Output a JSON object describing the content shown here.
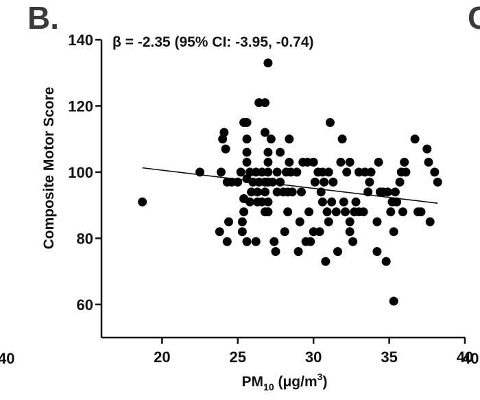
{
  "panel": {
    "label": "B.",
    "next_panel_label": "C",
    "prev_panel_tick_label": "40",
    "next_panel_tick_label": "40"
  },
  "annotation": "β = -2.35 (95% CI: -3.95, -0.74)",
  "chart_data": {
    "type": "scatter",
    "title": "",
    "xlabel_main": "PM",
    "xlabel_sub": "10",
    "xlabel_unit": " (μg/m",
    "xlabel_sup": "3",
    "xlabel_close": ")",
    "ylabel": "Composite Motor Score",
    "xlim": [
      16,
      40
    ],
    "ylim": [
      50,
      140
    ],
    "xticks": [
      20,
      25,
      30,
      35,
      40
    ],
    "yticks": [
      60,
      80,
      100,
      120,
      140
    ],
    "grid": false,
    "regression_line": {
      "x": [
        18.7,
        38.2
      ],
      "y": [
        101.3,
        90.6
      ]
    },
    "points": [
      [
        18.7,
        91
      ],
      [
        22.5,
        100
      ],
      [
        23.8,
        82
      ],
      [
        23.9,
        100
      ],
      [
        24.0,
        110
      ],
      [
        24.1,
        112
      ],
      [
        24.2,
        107
      ],
      [
        24.3,
        97
      ],
      [
        24.3,
        79
      ],
      [
        24.4,
        85
      ],
      [
        24.6,
        97
      ],
      [
        25.0,
        97
      ],
      [
        25.2,
        100
      ],
      [
        25.3,
        85
      ],
      [
        25.3,
        82
      ],
      [
        25.4,
        115
      ],
      [
        25.4,
        92
      ],
      [
        25.4,
        88
      ],
      [
        25.6,
        115
      ],
      [
        25.6,
        110
      ],
      [
        25.6,
        106
      ],
      [
        25.6,
        103
      ],
      [
        25.6,
        98
      ],
      [
        25.6,
        79
      ],
      [
        25.8,
        100
      ],
      [
        25.8,
        91
      ],
      [
        25.9,
        94
      ],
      [
        26.0,
        97
      ],
      [
        26.2,
        100
      ],
      [
        26.2,
        79
      ],
      [
        26.3,
        94
      ],
      [
        26.3,
        91
      ],
      [
        26.4,
        97
      ],
      [
        26.4,
        121
      ],
      [
        26.6,
        100
      ],
      [
        26.6,
        91
      ],
      [
        26.8,
        112
      ],
      [
        26.8,
        121
      ],
      [
        26.8,
        97
      ],
      [
        26.8,
        94
      ],
      [
        26.8,
        88
      ],
      [
        27.0,
        133
      ],
      [
        27.0,
        106
      ],
      [
        27.0,
        103
      ],
      [
        27.0,
        100
      ],
      [
        27.0,
        97
      ],
      [
        27.0,
        91
      ],
      [
        27.0,
        88
      ],
      [
        27.2,
        110
      ],
      [
        27.3,
        97
      ],
      [
        27.4,
        79
      ],
      [
        27.5,
        76
      ],
      [
        27.6,
        94
      ],
      [
        27.6,
        100
      ],
      [
        27.8,
        106
      ],
      [
        27.8,
        97
      ],
      [
        28.0,
        94
      ],
      [
        28.1,
        82
      ],
      [
        28.2,
        100
      ],
      [
        28.3,
        88
      ],
      [
        28.3,
        94
      ],
      [
        28.4,
        110
      ],
      [
        28.4,
        103
      ],
      [
        28.5,
        100
      ],
      [
        28.6,
        94
      ],
      [
        28.9,
        100
      ],
      [
        29.0,
        76
      ],
      [
        29.1,
        85
      ],
      [
        29.2,
        94
      ],
      [
        29.3,
        103
      ],
      [
        29.5,
        79
      ],
      [
        29.6,
        103
      ],
      [
        29.7,
        88
      ],
      [
        29.8,
        79
      ],
      [
        30.0,
        82
      ],
      [
        30.0,
        103
      ],
      [
        30.1,
        97
      ],
      [
        30.3,
        100
      ],
      [
        30.4,
        82
      ],
      [
        30.5,
        94
      ],
      [
        30.6,
        100
      ],
      [
        30.6,
        91
      ],
      [
        30.7,
        97
      ],
      [
        30.8,
        73
      ],
      [
        30.9,
        88
      ],
      [
        31.0,
        100
      ],
      [
        31.0,
        85
      ],
      [
        31.1,
        115
      ],
      [
        31.2,
        91
      ],
      [
        31.3,
        97
      ],
      [
        31.5,
        88
      ],
      [
        31.6,
        76
      ],
      [
        31.8,
        103
      ],
      [
        31.9,
        110
      ],
      [
        32.0,
        91
      ],
      [
        32.1,
        88
      ],
      [
        32.2,
        100
      ],
      [
        32.4,
        85
      ],
      [
        32.4,
        82
      ],
      [
        32.4,
        103
      ],
      [
        32.6,
        79
      ],
      [
        32.7,
        88
      ],
      [
        32.8,
        91
      ],
      [
        33.0,
        88
      ],
      [
        33.0,
        100
      ],
      [
        33.3,
        88
      ],
      [
        33.4,
        100
      ],
      [
        33.6,
        94
      ],
      [
        33.7,
        97
      ],
      [
        33.8,
        100
      ],
      [
        34.2,
        85
      ],
      [
        34.2,
        76
      ],
      [
        34.3,
        103
      ],
      [
        34.4,
        94
      ],
      [
        34.6,
        94
      ],
      [
        34.8,
        73
      ],
      [
        34.9,
        94
      ],
      [
        35.1,
        88
      ],
      [
        35.2,
        91
      ],
      [
        35.3,
        82
      ],
      [
        35.3,
        61
      ],
      [
        35.4,
        94
      ],
      [
        35.5,
        91
      ],
      [
        35.7,
        97
      ],
      [
        35.8,
        100
      ],
      [
        35.9,
        88
      ],
      [
        36.0,
        103
      ],
      [
        36.1,
        100
      ],
      [
        36.7,
        110
      ],
      [
        36.9,
        88
      ],
      [
        37.1,
        88
      ],
      [
        37.5,
        107
      ],
      [
        37.6,
        103
      ],
      [
        37.7,
        85
      ],
      [
        38.0,
        100
      ],
      [
        38.2,
        97
      ]
    ]
  }
}
